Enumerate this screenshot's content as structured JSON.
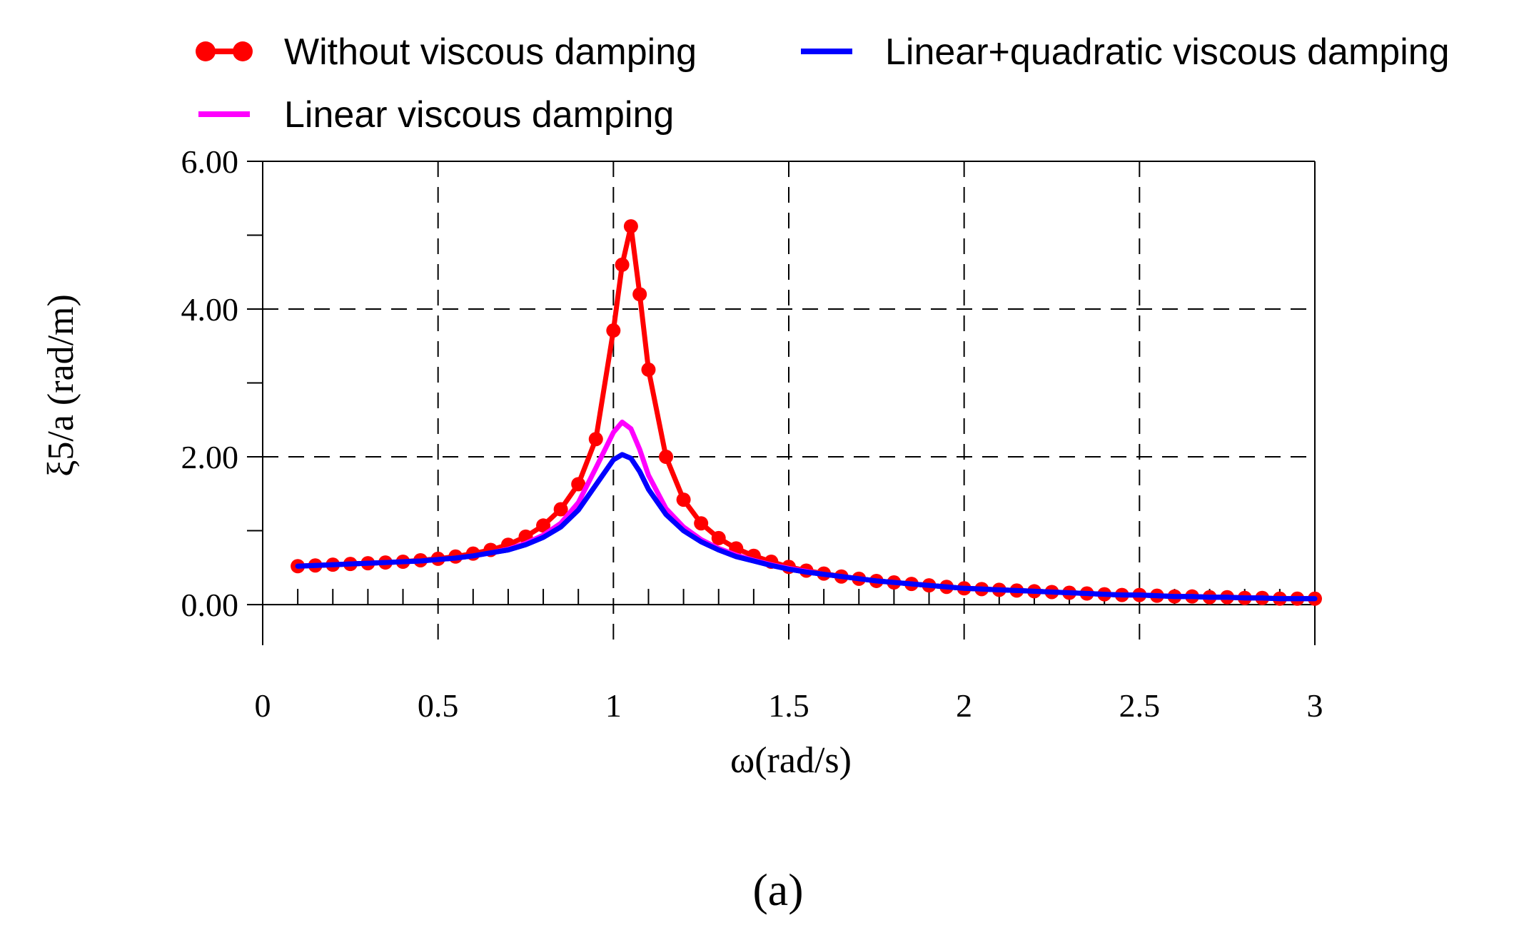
{
  "chart_data": {
    "type": "line",
    "title": "",
    "panel_label": "(a)",
    "xlabel": "ω(rad/s)",
    "ylabel": "ξ5/a (rad/m)",
    "xlim": [
      0,
      3
    ],
    "ylim": [
      -0.55,
      6.0
    ],
    "x_ticks": [
      0,
      0.5,
      1,
      1.5,
      2,
      2.5,
      3
    ],
    "x_tick_labels": [
      "0",
      "0.5",
      "1",
      "1.5",
      "2",
      "2.5",
      "3"
    ],
    "y_ticks": [
      0,
      2,
      4,
      6
    ],
    "y_tick_labels": [
      "0.00",
      "2.00",
      "4.00",
      "6.00"
    ],
    "grid": true,
    "legend_position": "top",
    "x": [
      0.1,
      0.15,
      0.2,
      0.25,
      0.3,
      0.35,
      0.4,
      0.45,
      0.5,
      0.55,
      0.6,
      0.65,
      0.7,
      0.75,
      0.8,
      0.85,
      0.9,
      0.95,
      1.0,
      1.025,
      1.05,
      1.075,
      1.1,
      1.15,
      1.2,
      1.25,
      1.3,
      1.35,
      1.4,
      1.45,
      1.5,
      1.55,
      1.6,
      1.65,
      1.7,
      1.75,
      1.8,
      1.85,
      1.9,
      1.95,
      2.0,
      2.05,
      2.1,
      2.15,
      2.2,
      2.25,
      2.3,
      2.35,
      2.4,
      2.45,
      2.5,
      2.55,
      2.6,
      2.65,
      2.7,
      2.75,
      2.8,
      2.85,
      2.9,
      2.95,
      3.0
    ],
    "series": [
      {
        "name": "Without viscous damping",
        "color": "#ff0000",
        "marker": "circle",
        "values": [
          0.52,
          0.53,
          0.54,
          0.55,
          0.56,
          0.57,
          0.58,
          0.6,
          0.62,
          0.65,
          0.69,
          0.74,
          0.81,
          0.92,
          1.07,
          1.29,
          1.63,
          2.24,
          3.71,
          4.6,
          5.12,
          4.2,
          3.18,
          2.0,
          1.42,
          1.1,
          0.9,
          0.76,
          0.66,
          0.58,
          0.51,
          0.46,
          0.42,
          0.38,
          0.35,
          0.32,
          0.3,
          0.28,
          0.26,
          0.24,
          0.22,
          0.21,
          0.2,
          0.19,
          0.18,
          0.17,
          0.16,
          0.15,
          0.14,
          0.13,
          0.13,
          0.12,
          0.11,
          0.11,
          0.1,
          0.1,
          0.09,
          0.09,
          0.08,
          0.08,
          0.08
        ]
      },
      {
        "name": "Linear viscous damping",
        "color": "#ff00ff",
        "marker": "none",
        "values": [
          0.52,
          0.53,
          0.54,
          0.55,
          0.56,
          0.57,
          0.58,
          0.59,
          0.61,
          0.63,
          0.66,
          0.7,
          0.75,
          0.83,
          0.94,
          1.1,
          1.38,
          1.85,
          2.33,
          2.47,
          2.38,
          2.1,
          1.75,
          1.3,
          1.05,
          0.88,
          0.76,
          0.67,
          0.6,
          0.54,
          0.49,
          0.45,
          0.41,
          0.38,
          0.35,
          0.32,
          0.3,
          0.28,
          0.26,
          0.24,
          0.22,
          0.21,
          0.2,
          0.19,
          0.18,
          0.17,
          0.16,
          0.15,
          0.14,
          0.13,
          0.13,
          0.12,
          0.11,
          0.11,
          0.1,
          0.1,
          0.09,
          0.09,
          0.08,
          0.08,
          0.08
        ]
      },
      {
        "name": "Linear+quadratic viscous damping",
        "color": "#0000ff",
        "marker": "none",
        "values": [
          0.52,
          0.53,
          0.54,
          0.55,
          0.56,
          0.57,
          0.58,
          0.59,
          0.61,
          0.63,
          0.66,
          0.7,
          0.74,
          0.81,
          0.91,
          1.05,
          1.28,
          1.62,
          1.96,
          2.03,
          1.98,
          1.8,
          1.56,
          1.22,
          1.0,
          0.85,
          0.74,
          0.65,
          0.59,
          0.53,
          0.48,
          0.44,
          0.41,
          0.38,
          0.35,
          0.32,
          0.3,
          0.28,
          0.26,
          0.24,
          0.22,
          0.21,
          0.2,
          0.19,
          0.18,
          0.17,
          0.16,
          0.15,
          0.14,
          0.13,
          0.13,
          0.12,
          0.11,
          0.11,
          0.1,
          0.1,
          0.09,
          0.09,
          0.08,
          0.08,
          0.08
        ]
      }
    ]
  }
}
